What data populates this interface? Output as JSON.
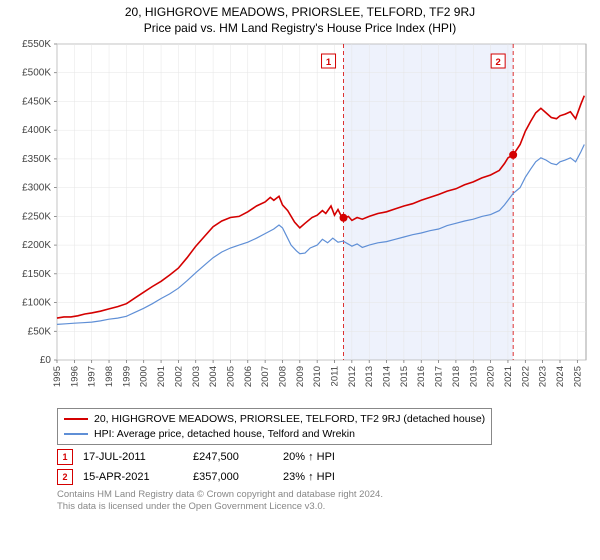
{
  "title_line1": "20, HIGHGROVE MEADOWS, PRIORSLEE, TELFORD, TF2 9RJ",
  "title_line2": "Price paid vs. HM Land Registry's House Price Index (HPI)",
  "chart": {
    "xlim": [
      1995,
      2025.5
    ],
    "ylim": [
      0,
      550000
    ],
    "ytick_vals": [
      0,
      50000,
      100000,
      150000,
      200000,
      250000,
      300000,
      350000,
      400000,
      450000,
      500000,
      550000
    ],
    "ytick_labels": [
      "£0",
      "£50K",
      "£100K",
      "£150K",
      "£200K",
      "£250K",
      "£300K",
      "£350K",
      "£400K",
      "£450K",
      "£500K",
      "£550K"
    ],
    "xtick_vals": [
      1995,
      1996,
      1997,
      1998,
      1999,
      2000,
      2001,
      2002,
      2003,
      2004,
      2005,
      2006,
      2007,
      2008,
      2009,
      2010,
      2011,
      2012,
      2013,
      2014,
      2015,
      2016,
      2017,
      2018,
      2019,
      2020,
      2021,
      2022,
      2023,
      2024,
      2025
    ],
    "highlight_band": {
      "start": 2011.52,
      "end": 2021.3,
      "fill": "#eef2fc"
    },
    "markers": [
      {
        "x": 2011.52,
        "y": 247500,
        "color": "#d40000",
        "label": "1"
      },
      {
        "x": 2021.3,
        "y": 357000,
        "color": "#d40000",
        "label": "2"
      }
    ],
    "series": [
      {
        "name": "red",
        "color": "#d40000",
        "width": 1.6,
        "points": [
          [
            1995,
            73000
          ],
          [
            1995.4,
            75000
          ],
          [
            1995.8,
            75000
          ],
          [
            1996.2,
            77000
          ],
          [
            1996.6,
            80000
          ],
          [
            1997,
            82000
          ],
          [
            1997.5,
            85000
          ],
          [
            1998,
            89000
          ],
          [
            1998.5,
            93000
          ],
          [
            1999,
            98000
          ],
          [
            1999.5,
            108000
          ],
          [
            2000,
            118000
          ],
          [
            2000.5,
            128000
          ],
          [
            2001,
            137000
          ],
          [
            2001.5,
            148000
          ],
          [
            2002,
            160000
          ],
          [
            2002.5,
            178000
          ],
          [
            2003,
            198000
          ],
          [
            2003.5,
            215000
          ],
          [
            2004,
            232000
          ],
          [
            2004.5,
            242000
          ],
          [
            2005,
            248000
          ],
          [
            2005.5,
            250000
          ],
          [
            2006,
            258000
          ],
          [
            2006.5,
            268000
          ],
          [
            2007,
            275000
          ],
          [
            2007.3,
            283000
          ],
          [
            2007.5,
            278000
          ],
          [
            2007.8,
            285000
          ],
          [
            2008,
            270000
          ],
          [
            2008.3,
            260000
          ],
          [
            2008.7,
            240000
          ],
          [
            2009,
            230000
          ],
          [
            2009.3,
            238000
          ],
          [
            2009.7,
            248000
          ],
          [
            2010,
            252000
          ],
          [
            2010.3,
            260000
          ],
          [
            2010.5,
            255000
          ],
          [
            2010.8,
            268000
          ],
          [
            2011,
            252000
          ],
          [
            2011.2,
            262000
          ],
          [
            2011.4,
            250000
          ],
          [
            2011.6,
            247500
          ],
          [
            2011.8,
            250000
          ],
          [
            2012,
            243000
          ],
          [
            2012.3,
            248000
          ],
          [
            2012.6,
            245000
          ],
          [
            2013,
            250000
          ],
          [
            2013.5,
            255000
          ],
          [
            2014,
            258000
          ],
          [
            2014.5,
            263000
          ],
          [
            2015,
            268000
          ],
          [
            2015.5,
            272000
          ],
          [
            2016,
            278000
          ],
          [
            2016.5,
            283000
          ],
          [
            2017,
            288000
          ],
          [
            2017.5,
            294000
          ],
          [
            2018,
            298000
          ],
          [
            2018.5,
            305000
          ],
          [
            2019,
            310000
          ],
          [
            2019.5,
            317000
          ],
          [
            2020,
            322000
          ],
          [
            2020.5,
            330000
          ],
          [
            2020.8,
            342000
          ],
          [
            2021,
            352000
          ],
          [
            2021.3,
            357000
          ],
          [
            2021.7,
            375000
          ],
          [
            2022,
            398000
          ],
          [
            2022.3,
            415000
          ],
          [
            2022.6,
            430000
          ],
          [
            2022.9,
            438000
          ],
          [
            2023.2,
            430000
          ],
          [
            2023.5,
            422000
          ],
          [
            2023.8,
            420000
          ],
          [
            2024,
            425000
          ],
          [
            2024.3,
            428000
          ],
          [
            2024.6,
            432000
          ],
          [
            2024.9,
            420000
          ],
          [
            2025.2,
            445000
          ],
          [
            2025.4,
            460000
          ]
        ]
      },
      {
        "name": "blue",
        "color": "#5f8fd6",
        "width": 1.2,
        "points": [
          [
            1995,
            62000
          ],
          [
            1995.5,
            63000
          ],
          [
            1996,
            64000
          ],
          [
            1996.5,
            65000
          ],
          [
            1997,
            66000
          ],
          [
            1997.5,
            68000
          ],
          [
            1998,
            71000
          ],
          [
            1998.5,
            73000
          ],
          [
            1999,
            76000
          ],
          [
            1999.5,
            83000
          ],
          [
            2000,
            90000
          ],
          [
            2000.5,
            98000
          ],
          [
            2001,
            107000
          ],
          [
            2001.5,
            115000
          ],
          [
            2002,
            125000
          ],
          [
            2002.5,
            138000
          ],
          [
            2003,
            152000
          ],
          [
            2003.5,
            165000
          ],
          [
            2004,
            178000
          ],
          [
            2004.5,
            188000
          ],
          [
            2005,
            195000
          ],
          [
            2005.5,
            200000
          ],
          [
            2006,
            205000
          ],
          [
            2006.5,
            212000
          ],
          [
            2007,
            220000
          ],
          [
            2007.5,
            228000
          ],
          [
            2007.8,
            235000
          ],
          [
            2008,
            230000
          ],
          [
            2008.2,
            218000
          ],
          [
            2008.5,
            200000
          ],
          [
            2008.8,
            190000
          ],
          [
            2009,
            185000
          ],
          [
            2009.3,
            186000
          ],
          [
            2009.6,
            195000
          ],
          [
            2010,
            200000
          ],
          [
            2010.3,
            210000
          ],
          [
            2010.6,
            204000
          ],
          [
            2010.9,
            212000
          ],
          [
            2011.2,
            205000
          ],
          [
            2011.5,
            207000
          ],
          [
            2012,
            198000
          ],
          [
            2012.3,
            202000
          ],
          [
            2012.6,
            196000
          ],
          [
            2013,
            200000
          ],
          [
            2013.5,
            204000
          ],
          [
            2014,
            206000
          ],
          [
            2014.5,
            210000
          ],
          [
            2015,
            214000
          ],
          [
            2015.5,
            218000
          ],
          [
            2016,
            221000
          ],
          [
            2016.5,
            225000
          ],
          [
            2017,
            228000
          ],
          [
            2017.5,
            234000
          ],
          [
            2018,
            238000
          ],
          [
            2018.5,
            242000
          ],
          [
            2019,
            245000
          ],
          [
            2019.5,
            250000
          ],
          [
            2020,
            253000
          ],
          [
            2020.5,
            260000
          ],
          [
            2020.8,
            270000
          ],
          [
            2021,
            278000
          ],
          [
            2021.3,
            290000
          ],
          [
            2021.7,
            300000
          ],
          [
            2022,
            318000
          ],
          [
            2022.3,
            332000
          ],
          [
            2022.6,
            345000
          ],
          [
            2022.9,
            352000
          ],
          [
            2023.2,
            348000
          ],
          [
            2023.5,
            342000
          ],
          [
            2023.8,
            340000
          ],
          [
            2024,
            345000
          ],
          [
            2024.3,
            348000
          ],
          [
            2024.6,
            352000
          ],
          [
            2024.9,
            345000
          ],
          [
            2025.2,
            362000
          ],
          [
            2025.4,
            375000
          ]
        ]
      }
    ],
    "plot_bg": "#ffffff",
    "grid_color": "#e5e5e5"
  },
  "legend": {
    "red_label": "20, HIGHGROVE MEADOWS, PRIORSLEE, TELFORD, TF2 9RJ (detached house)",
    "red_color": "#d40000",
    "blue_label": "HPI: Average price, detached house, Telford and Wrekin",
    "blue_color": "#5f8fd6"
  },
  "entries": [
    {
      "n": "1",
      "color": "#d40000",
      "date": "17-JUL-2011",
      "amount": "£247,500",
      "pct": "20% ↑ HPI"
    },
    {
      "n": "2",
      "color": "#d40000",
      "date": "15-APR-2021",
      "amount": "£357,000",
      "pct": "23% ↑ HPI"
    }
  ],
  "disclaimer_l1": "Contains HM Land Registry data © Crown copyright and database right 2024.",
  "disclaimer_l2": "This data is licensed under the Open Government Licence v3.0."
}
